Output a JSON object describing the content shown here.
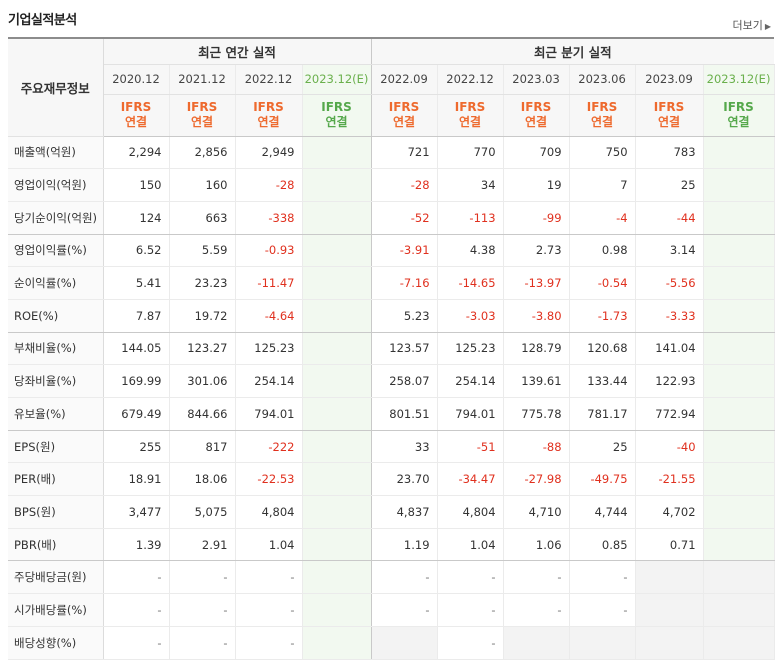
{
  "section": {
    "title": "기업실적분석",
    "more_label": "더보기"
  },
  "header": {
    "row_label": "주요재무정보",
    "annual_group": "최근 연간 실적",
    "quarter_group": "최근 분기 실적",
    "annual_periods": [
      "2020.12",
      "2021.12",
      "2022.12",
      "2023.12(E)"
    ],
    "quarter_periods": [
      "2022.09",
      "2022.12",
      "2023.03",
      "2023.06",
      "2023.09",
      "2023.12(E)"
    ],
    "basis_line1": "IFRS",
    "basis_line2": "연결"
  },
  "rows": [
    {
      "label": "매출액(억원)",
      "values": [
        "2,294",
        "2,856",
        "2,949",
        "",
        "721",
        "770",
        "709",
        "750",
        "783",
        ""
      ]
    },
    {
      "label": "영업이익(억원)",
      "values": [
        "150",
        "160",
        "-28",
        "",
        "-28",
        "34",
        "19",
        "7",
        "25",
        ""
      ]
    },
    {
      "label": "당기순이익(억원)",
      "values": [
        "124",
        "663",
        "-338",
        "",
        "-52",
        "-113",
        "-99",
        "-4",
        "-44",
        ""
      ]
    },
    {
      "label": "영업이익률(%)",
      "values": [
        "6.52",
        "5.59",
        "-0.93",
        "",
        "-3.91",
        "4.38",
        "2.73",
        "0.98",
        "3.14",
        ""
      ]
    },
    {
      "label": "순이익률(%)",
      "values": [
        "5.41",
        "23.23",
        "-11.47",
        "",
        "-7.16",
        "-14.65",
        "-13.97",
        "-0.54",
        "-5.56",
        ""
      ]
    },
    {
      "label": "ROE(%)",
      "values": [
        "7.87",
        "19.72",
        "-4.64",
        "",
        "5.23",
        "-3.03",
        "-3.80",
        "-1.73",
        "-3.33",
        ""
      ]
    },
    {
      "label": "부채비율(%)",
      "values": [
        "144.05",
        "123.27",
        "125.23",
        "",
        "123.57",
        "125.23",
        "128.79",
        "120.68",
        "141.04",
        ""
      ]
    },
    {
      "label": "당좌비율(%)",
      "values": [
        "169.99",
        "301.06",
        "254.14",
        "",
        "258.07",
        "254.14",
        "139.61",
        "133.44",
        "122.93",
        ""
      ]
    },
    {
      "label": "유보율(%)",
      "values": [
        "679.49",
        "844.66",
        "794.01",
        "",
        "801.51",
        "794.01",
        "775.78",
        "781.17",
        "772.94",
        ""
      ]
    },
    {
      "label": "EPS(원)",
      "values": [
        "255",
        "817",
        "-222",
        "",
        "33",
        "-51",
        "-88",
        "25",
        "-40",
        ""
      ]
    },
    {
      "label": "PER(배)",
      "values": [
        "18.91",
        "18.06",
        "-22.53",
        "",
        "23.70",
        "-34.47",
        "-27.98",
        "-49.75",
        "-21.55",
        ""
      ]
    },
    {
      "label": "BPS(원)",
      "values": [
        "3,477",
        "5,075",
        "4,804",
        "",
        "4,837",
        "4,804",
        "4,710",
        "4,744",
        "4,702",
        ""
      ]
    },
    {
      "label": "PBR(배)",
      "values": [
        "1.39",
        "2.91",
        "1.04",
        "",
        "1.19",
        "1.04",
        "1.06",
        "0.85",
        "0.71",
        ""
      ]
    },
    {
      "label": "주당배당금(원)",
      "values": [
        "-",
        "-",
        "-",
        "",
        "-",
        "-",
        "-",
        "-",
        "",
        ""
      ]
    },
    {
      "label": "시가배당률(%)",
      "values": [
        "-",
        "-",
        "-",
        "",
        "-",
        "-",
        "-",
        "-",
        "",
        ""
      ]
    },
    {
      "label": "배당성향(%)",
      "values": [
        "-",
        "-",
        "-",
        "",
        "",
        "-",
        "",
        "",
        "",
        ""
      ]
    }
  ],
  "colors": {
    "negative": "#e0301e",
    "ifrs": "#ee6a2e",
    "estimate_bg": "#f2f9f0"
  }
}
